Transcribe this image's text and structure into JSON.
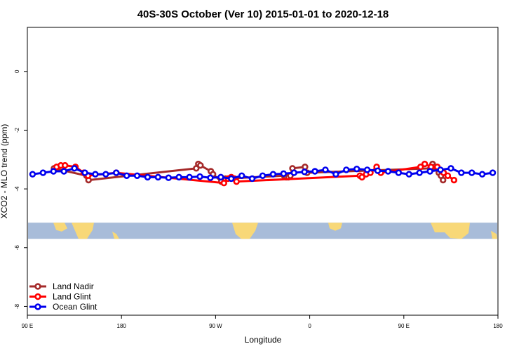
{
  "chart_data": {
    "type": "line",
    "title": "40S-30S October (Ver 10)   2015-01-01 to 2020-12-18",
    "xlabel": "Longitude",
    "ylabel": "XCO2 - MLO trend (ppm)",
    "xlim": [
      90,
      540
    ],
    "ylim": [
      -8.3,
      1.5
    ],
    "x_ticks": [
      {
        "value": 90,
        "label": "90 E"
      },
      {
        "value": 180,
        "label": "180"
      },
      {
        "value": 270,
        "label": "90 W"
      },
      {
        "value": 360,
        "label": "0"
      },
      {
        "value": 450,
        "label": "90 E"
      },
      {
        "value": 540,
        "label": "180"
      }
    ],
    "y_ticks": [
      {
        "value": 0,
        "label": "0"
      },
      {
        "value": -2,
        "label": "-2"
      },
      {
        "value": -4,
        "label": "-4"
      },
      {
        "value": -6,
        "label": "-6"
      },
      {
        "value": -8,
        "label": "-8"
      }
    ],
    "map_strip": {
      "lat_range": [
        -40,
        -30
      ],
      "ocean_color": "#a8bcd9",
      "land_color": "#f8d878",
      "y_range": [
        -5.7,
        -5.15
      ]
    },
    "legend": {
      "position": "bottom-left"
    },
    "series": [
      {
        "name": "Land Nadir",
        "color": "#a52a2a",
        "x": [
          115.5,
          146.5,
          148.5,
          251.5,
          253.5,
          255.5,
          265.5,
          267.5,
          275.5,
          279.5,
          335.5,
          337.5,
          339.5,
          341.5,
          343.5,
          355.5,
          357.5,
          475.5,
          477.5,
          479.5,
          481.5,
          483.5,
          485.5,
          487.5
        ],
        "y": [
          -3.3,
          -3.55,
          -3.7,
          -3.3,
          -3.15,
          -3.2,
          -3.4,
          -3.5,
          -3.75,
          -3.65,
          -3.55,
          -3.6,
          -3.6,
          -3.55,
          -3.3,
          -3.25,
          -3.45,
          -3.3,
          -3.15,
          -3.25,
          -3.3,
          -3.45,
          -3.55,
          -3.7
        ]
      },
      {
        "name": "Land Glint",
        "color": "#ff0000",
        "x": [
          118,
          122,
          126,
          136,
          144,
          148,
          175,
          278,
          282,
          285,
          288,
          290,
          408,
          410,
          414,
          418,
          424,
          428,
          466,
          470,
          476,
          482,
          488,
          492,
          498
        ],
        "y": [
          -3.25,
          -3.2,
          -3.2,
          -3.25,
          -3.45,
          -3.55,
          -3.45,
          -3.8,
          -3.65,
          -3.6,
          -3.65,
          -3.75,
          -3.55,
          -3.6,
          -3.5,
          -3.45,
          -3.25,
          -3.45,
          -3.25,
          -3.15,
          -3.25,
          -3.25,
          -3.45,
          -3.55,
          -3.7
        ]
      },
      {
        "name": "Ocean Glint",
        "color": "#0000ee",
        "x": [
          95,
          105,
          115,
          125,
          135,
          145,
          155,
          165,
          175,
          185,
          195,
          205,
          215,
          225,
          235,
          245,
          255,
          265,
          275,
          285,
          295,
          305,
          315,
          325,
          335,
          345,
          355,
          365,
          375,
          385,
          395,
          405,
          415,
          425,
          435,
          445,
          455,
          465,
          475,
          485,
          495,
          505,
          515,
          525,
          535
        ],
        "y": [
          -3.5,
          -3.45,
          -3.4,
          -3.4,
          -3.3,
          -3.45,
          -3.5,
          -3.5,
          -3.45,
          -3.55,
          -3.55,
          -3.6,
          -3.6,
          -3.62,
          -3.6,
          -3.6,
          -3.58,
          -3.62,
          -3.6,
          -3.65,
          -3.55,
          -3.65,
          -3.55,
          -3.5,
          -3.48,
          -3.45,
          -3.42,
          -3.4,
          -3.35,
          -3.5,
          -3.35,
          -3.32,
          -3.35,
          -3.38,
          -3.4,
          -3.45,
          -3.5,
          -3.45,
          -3.4,
          -3.35,
          -3.3,
          -3.45,
          -3.45,
          -3.5,
          -3.45
        ]
      }
    ]
  }
}
